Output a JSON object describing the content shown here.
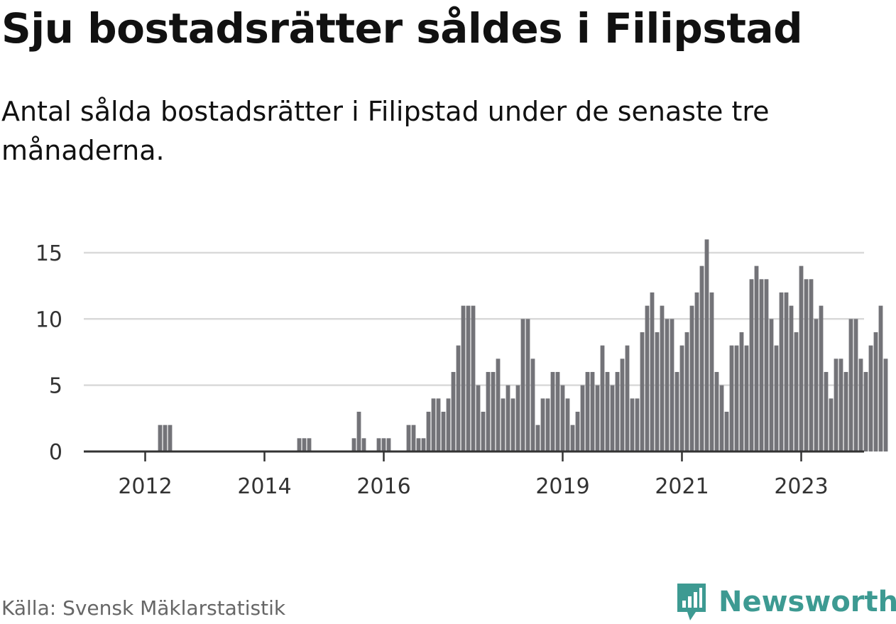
{
  "title": "Sju bostadsrätter såldes i Filipstad",
  "subtitle": "Antal sålda bostadsrätter i Filipstad under de senaste tre månaderna.",
  "source": "Källa: Svensk Mäklarstatistik",
  "brand": {
    "name": "Newsworthy",
    "icon": "newsworthy-logo-icon",
    "color": "#3d9a92"
  },
  "chart_data": {
    "type": "bar",
    "start": {
      "year": 2011,
      "month": 1
    },
    "values": [
      0,
      0,
      0,
      0,
      0,
      0,
      0,
      0,
      0,
      0,
      0,
      0,
      0,
      0,
      0,
      2,
      2,
      2,
      0,
      0,
      0,
      0,
      0,
      0,
      0,
      0,
      0,
      0,
      0,
      0,
      0,
      0,
      0,
      0,
      0,
      0,
      0,
      0,
      0,
      0,
      0,
      0,
      0,
      1,
      1,
      1,
      0,
      0,
      0,
      0,
      0,
      0,
      0,
      0,
      1,
      3,
      1,
      0,
      0,
      1,
      1,
      1,
      0,
      0,
      0,
      2,
      2,
      1,
      1,
      3,
      4,
      4,
      3,
      4,
      6,
      8,
      11,
      11,
      11,
      5,
      3,
      6,
      6,
      7,
      4,
      5,
      4,
      5,
      10,
      10,
      7,
      2,
      4,
      4,
      6,
      6,
      5,
      4,
      2,
      3,
      5,
      6,
      6,
      5,
      8,
      6,
      5,
      6,
      7,
      8,
      4,
      4,
      9,
      11,
      12,
      9,
      11,
      10,
      10,
      6,
      8,
      9,
      11,
      12,
      14,
      16,
      12,
      6,
      5,
      3,
      8,
      8,
      9,
      8,
      13,
      14,
      13,
      13,
      10,
      8,
      12,
      12,
      11,
      9,
      14,
      13,
      13,
      10,
      11,
      6,
      4,
      7,
      7,
      6,
      10,
      10,
      7,
      6,
      8,
      9,
      11,
      7
    ],
    "highlight_index": 163,
    "highlight_label": "7",
    "bar_color": "#737378",
    "highlight_color": "#1aa39c",
    "y_ticks": [
      0,
      5,
      10,
      15
    ],
    "ylim": [
      0,
      16
    ],
    "x_ticks": [
      "2012",
      "2014",
      "2016",
      "2019",
      "2021",
      "2023"
    ],
    "grid": true,
    "legend": "none"
  }
}
